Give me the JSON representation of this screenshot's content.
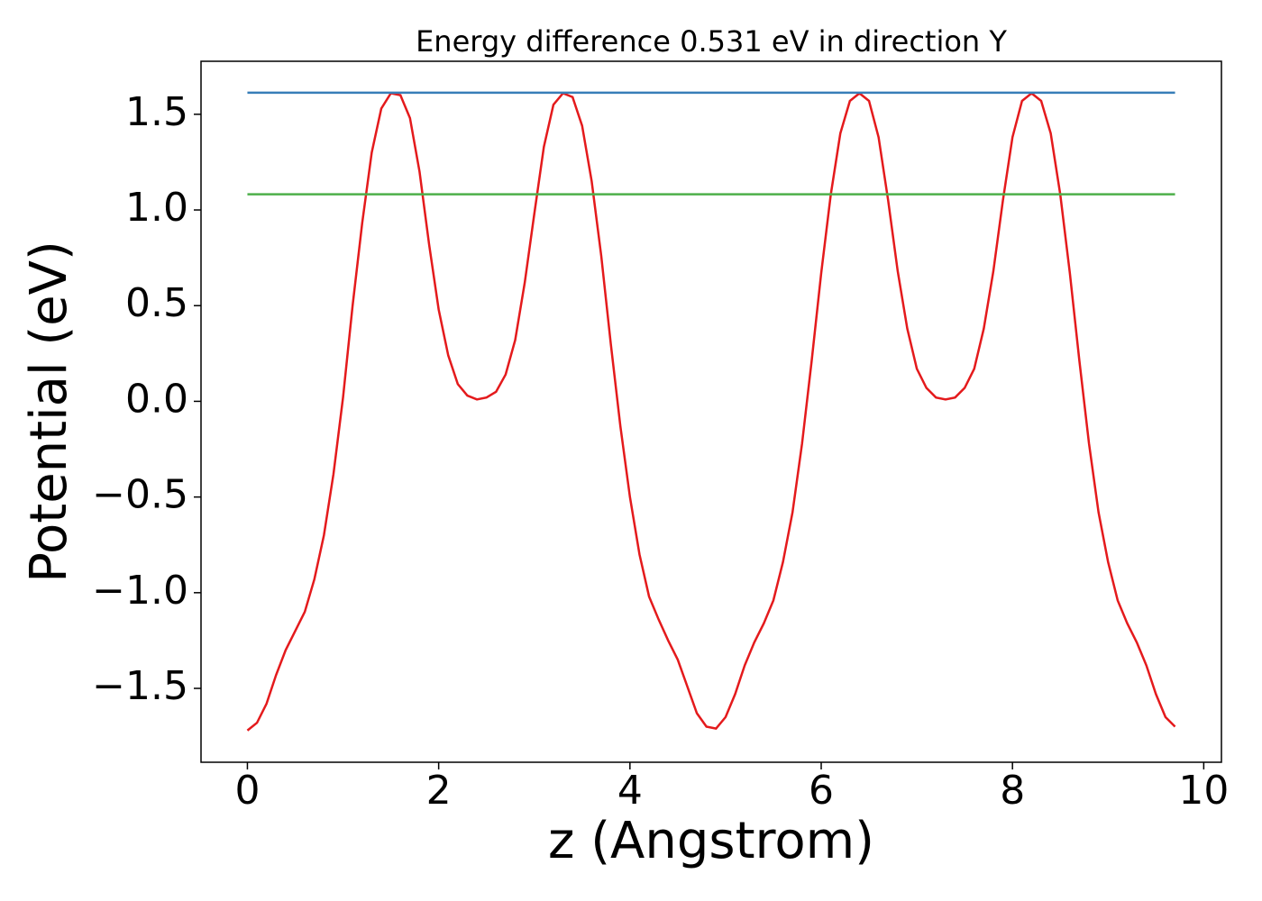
{
  "chart_data": {
    "type": "line",
    "title": "Energy difference 0.531 eV in direction Y",
    "xlabel": "z (Angstrom)",
    "ylabel": "Potential (eV)",
    "xlim": [
      -0.485,
      10.185
    ],
    "ylim": [
      -1.886,
      1.777
    ],
    "xticks": [
      0,
      2,
      4,
      6,
      8,
      10
    ],
    "yticks": [
      {
        "value": -1.5,
        "label": "−1.5"
      },
      {
        "value": -1.0,
        "label": "−1.0"
      },
      {
        "value": -0.5,
        "label": "−0.5"
      },
      {
        "value": 0.0,
        "label": "0.0"
      },
      0.5,
      {
        "value": 1.0,
        "label": "1.0"
      },
      1.5
    ],
    "series": [
      {
        "color": "#e41a1c",
        "x": [
          0,
          0.1,
          0.2,
          0.3,
          0.4,
          0.5,
          0.6,
          0.7,
          0.8,
          0.9,
          1.0,
          1.1,
          1.2,
          1.3,
          1.4,
          1.5,
          1.6,
          1.7,
          1.8,
          1.9,
          2.0,
          2.1,
          2.2,
          2.3,
          2.4,
          2.5,
          2.6,
          2.7,
          2.8,
          2.9,
          3.0,
          3.1,
          3.2,
          3.3,
          3.4,
          3.5,
          3.6,
          3.7,
          3.8,
          3.9,
          4.0,
          4.1,
          4.2,
          4.3,
          4.4,
          4.5,
          4.6,
          4.7,
          4.8,
          4.9,
          5.0,
          5.1,
          5.2,
          5.3,
          5.4,
          5.5,
          5.6,
          5.7,
          5.8,
          5.9,
          6.0,
          6.1,
          6.2,
          6.3,
          6.4,
          6.5,
          6.6,
          6.7,
          6.8,
          6.9,
          7.0,
          7.1,
          7.2,
          7.3,
          7.4,
          7.5,
          7.6,
          7.7,
          7.8,
          7.9,
          8.0,
          8.1,
          8.2,
          8.3,
          8.4,
          8.5,
          8.6,
          8.7,
          8.8,
          8.9,
          9.0,
          9.1,
          9.2,
          9.3,
          9.4,
          9.5,
          9.6,
          9.7
        ],
        "values": [
          -1.72,
          -1.68,
          -1.58,
          -1.43,
          -1.3,
          -1.2,
          -1.1,
          -0.93,
          -0.7,
          -0.38,
          0.02,
          0.5,
          0.93,
          1.3,
          1.53,
          1.61,
          1.6,
          1.48,
          1.2,
          0.82,
          0.48,
          0.24,
          0.09,
          0.03,
          0.01,
          0.02,
          0.05,
          0.14,
          0.32,
          0.62,
          0.98,
          1.33,
          1.55,
          1.61,
          1.59,
          1.44,
          1.15,
          0.76,
          0.3,
          -0.13,
          -0.5,
          -0.8,
          -1.02,
          -1.14,
          -1.25,
          -1.35,
          -1.49,
          -1.63,
          -1.7,
          -1.71,
          -1.65,
          -1.53,
          -1.38,
          -1.26,
          -1.16,
          -1.04,
          -0.84,
          -0.58,
          -0.22,
          0.21,
          0.67,
          1.08,
          1.4,
          1.57,
          1.61,
          1.57,
          1.38,
          1.05,
          0.68,
          0.38,
          0.17,
          0.07,
          0.02,
          0.01,
          0.02,
          0.07,
          0.17,
          0.38,
          0.68,
          1.05,
          1.38,
          1.57,
          1.61,
          1.57,
          1.4,
          1.08,
          0.67,
          0.21,
          -0.22,
          -0.58,
          -0.84,
          -1.04,
          -1.16,
          -1.26,
          -1.38,
          -1.53,
          -1.65,
          -1.7
        ]
      },
      {
        "color": "#377eb8",
        "x": [
          0,
          9.7
        ],
        "values": [
          1.613,
          1.613
        ]
      },
      {
        "color": "#4daf4a",
        "x": [
          0,
          9.7
        ],
        "values": [
          1.082,
          1.082
        ]
      }
    ]
  }
}
